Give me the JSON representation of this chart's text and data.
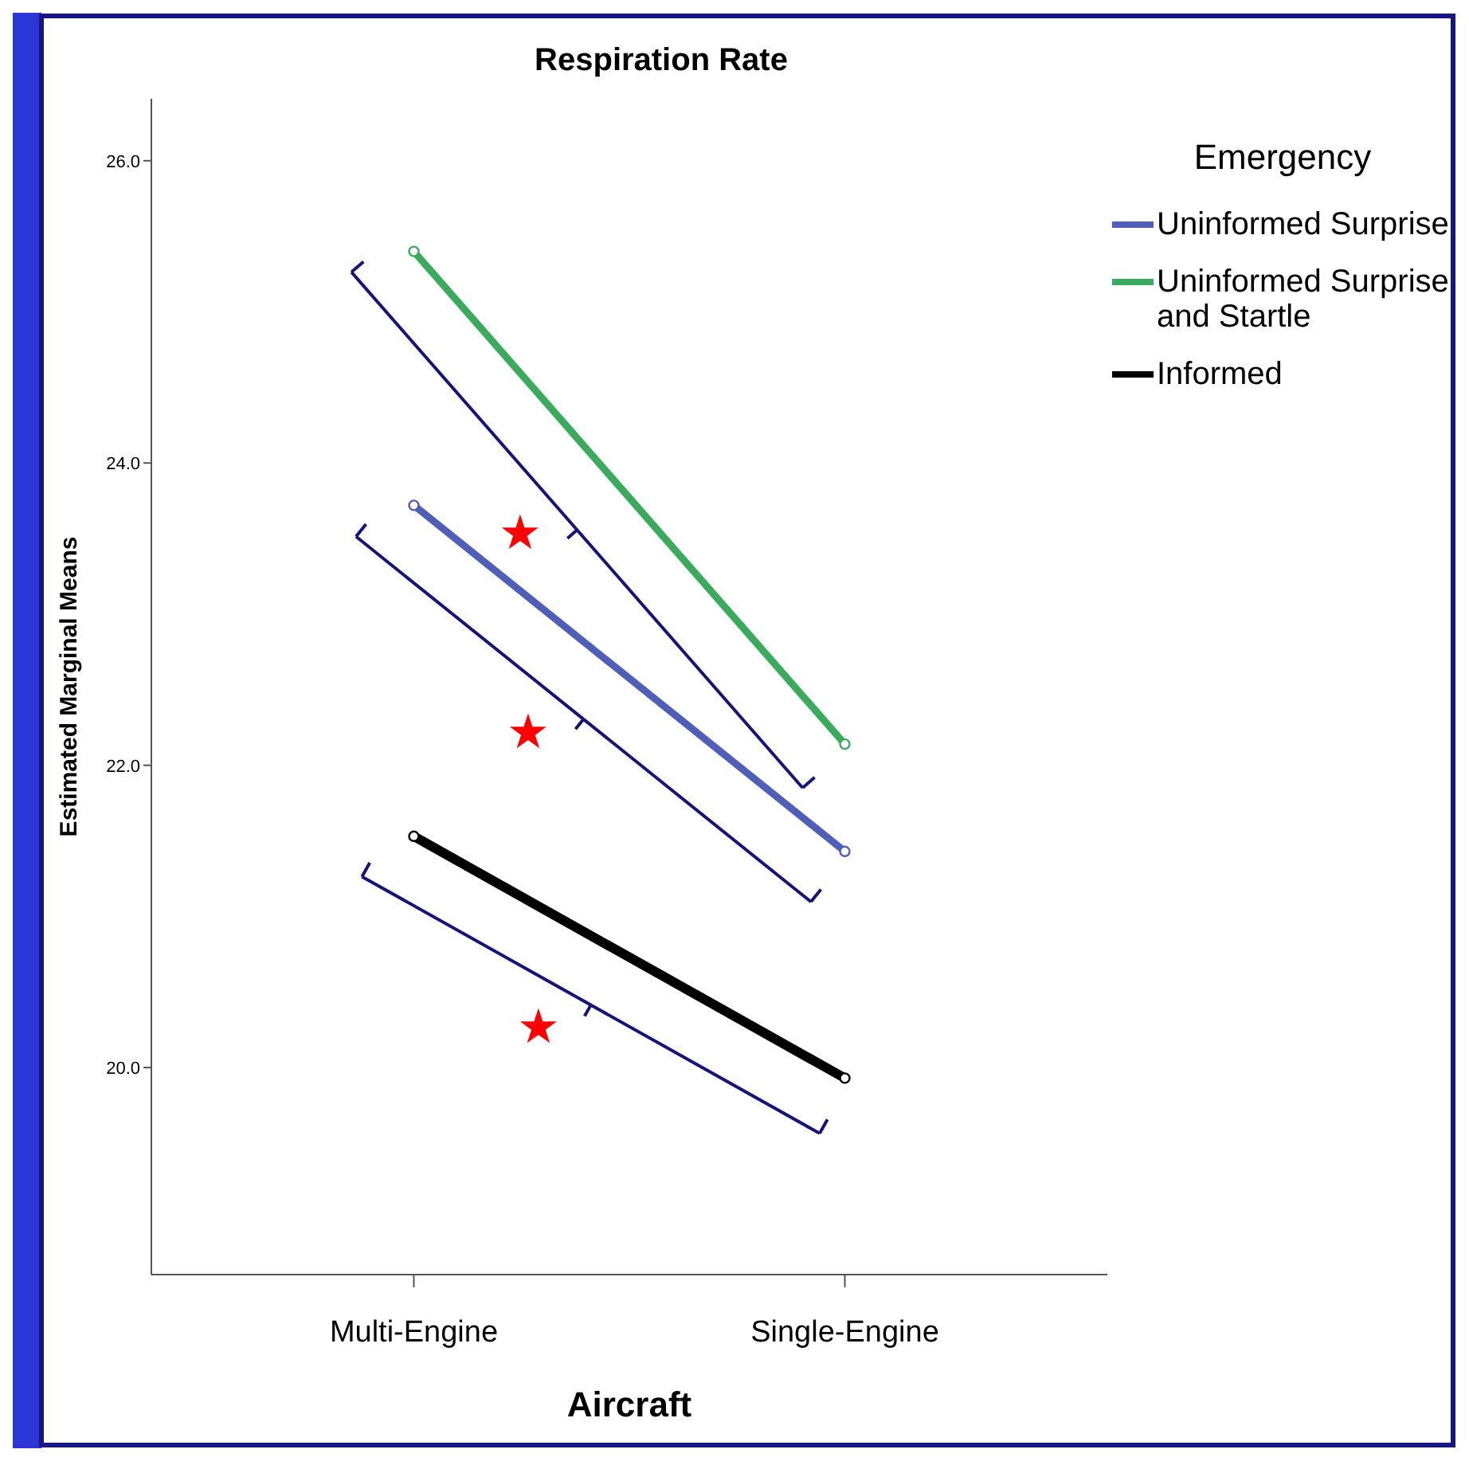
{
  "chart_data": {
    "type": "line",
    "title": "Respiration Rate",
    "xlabel": "Aircraft",
    "ylabel": "Estimated Marginal Means",
    "legend_title": "Emergency",
    "legend": "top right",
    "marker": "circle",
    "categories": [
      "Multi-Engine",
      "Single-Engine"
    ],
    "series": [
      {
        "name": "Uninformed Surprise",
        "color": "#4f5fb8",
        "values": [
          23.72,
          21.43
        ]
      },
      {
        "name": "Uninformed Surprise and Startle",
        "color": "#3aaa5c",
        "values": [
          25.4,
          22.14
        ]
      },
      {
        "name": "Informed",
        "color": "#000000",
        "values": [
          21.53,
          19.93
        ]
      }
    ],
    "ylim": [
      18.63,
      26.41
    ],
    "yticks": [
      {
        "value": 20,
        "label": "20.0"
      },
      {
        "value": 22,
        "label": "22.0"
      },
      {
        "value": 24,
        "label": "24.0"
      },
      {
        "value": 26,
        "label": "26.0"
      }
    ],
    "annotations": [
      "★",
      "★",
      "★"
    ]
  }
}
